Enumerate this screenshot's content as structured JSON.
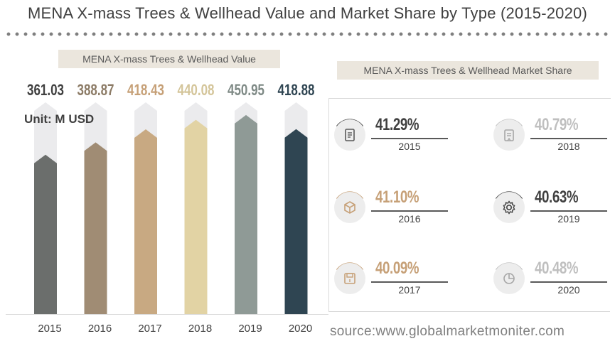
{
  "title": "MENA X-mass Trees & Wellhead Value and Market Share by Type (2015-2020)",
  "left_panel_label": "MENA X-mass Trees & Wellhead Value",
  "right_panel_label": "MENA X-mass Trees & Wellhead Market Share",
  "unit_label": "Unit:   M USD",
  "source": "source:www.globalmarketmoniter.com",
  "chart_data": {
    "type": "bar",
    "categories": [
      "2015",
      "2016",
      "2017",
      "2018",
      "2019",
      "2020"
    ],
    "values": [
      361.03,
      388.87,
      418.43,
      440.08,
      450.95,
      418.88
    ],
    "value_labels": [
      "361.03",
      "388.87",
      "418.43",
      "440.08",
      "450.95",
      "418.88"
    ],
    "colors": [
      "#6b6e6c",
      "#a08c74",
      "#c8a982",
      "#e2d3a4",
      "#8f9a96",
      "#2f4552"
    ],
    "label_colors": [
      "#404040",
      "#8c7b66",
      "#c6a077",
      "#d4c59a",
      "#7f8a86",
      "#2f4552"
    ],
    "ylim": [
      0,
      470
    ],
    "market_share": [
      {
        "year": "2015",
        "value": "41.29%",
        "icon": "document-icon",
        "color": "#404040"
      },
      {
        "year": "2018",
        "value": "40.79%",
        "icon": "clipboard-icon",
        "color": "#bfbfbf"
      },
      {
        "year": "2016",
        "value": "41.10%",
        "icon": "cube-icon",
        "color": "#c6a077"
      },
      {
        "year": "2019",
        "value": "40.63%",
        "icon": "gear-icon",
        "color": "#404040"
      },
      {
        "year": "2017",
        "value": "40.09%",
        "icon": "save-icon",
        "color": "#c6a077"
      },
      {
        "year": "2020",
        "value": "40.48%",
        "icon": "pie-chart-icon",
        "color": "#bfbfbf"
      }
    ]
  }
}
